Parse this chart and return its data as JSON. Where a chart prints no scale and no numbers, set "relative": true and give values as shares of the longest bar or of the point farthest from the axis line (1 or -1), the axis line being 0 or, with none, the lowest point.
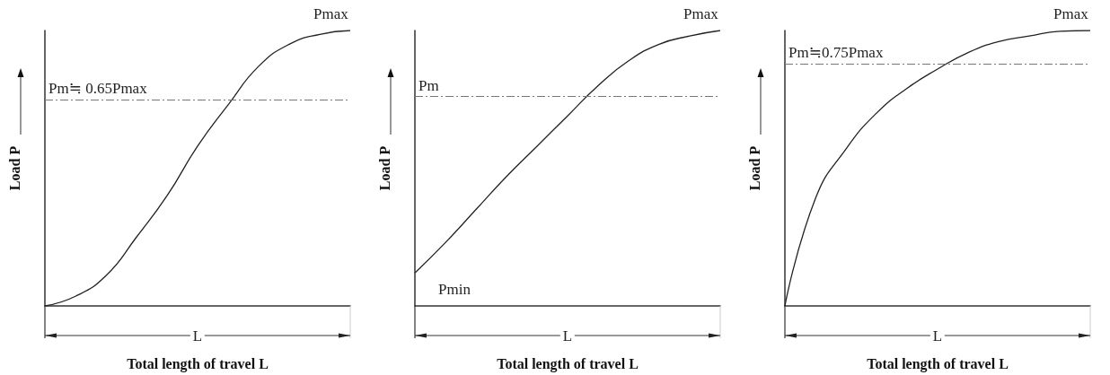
{
  "chart_data": [
    {
      "type": "line",
      "relative": true,
      "xlabel": "Total length of travel L",
      "ylabel": "Load P",
      "line_style": "solid",
      "categories": [
        null,
        null,
        null,
        null,
        null,
        null,
        null,
        null,
        null,
        null,
        null
      ],
      "values": [
        0,
        0.035,
        0.11,
        0.25,
        0.4,
        0.58,
        0.73,
        0.87,
        0.95,
        0.986,
        1
      ],
      "color": "#222222",
      "ref_lines": [
        {
          "axis": "y",
          "value": 0.75,
          "label": "Pm≒ 0.65Pmax",
          "line_style": "dashed",
          "color": "#777777"
        }
      ],
      "annotations": [
        {
          "text": "Pmax",
          "y": 1
        },
        "L"
      ]
    },
    {
      "type": "line",
      "relative": true,
      "xlabel": "Total length of travel L",
      "ylabel": "Load P",
      "line_style": "solid",
      "categories": [
        null,
        null,
        null,
        null,
        null,
        null,
        null,
        null,
        null,
        null,
        null
      ],
      "values": [
        0.12,
        0.23,
        0.35,
        0.47,
        0.58,
        0.69,
        0.8,
        0.89,
        0.95,
        0.98,
        1
      ],
      "color": "#222222",
      "ref_lines": [
        {
          "axis": "y",
          "value": 0.76,
          "label": "Pm",
          "line_style": "dashed",
          "color": "#777777"
        }
      ],
      "annotations": [
        {
          "text": "Pmax",
          "y": 1
        },
        "Pmin",
        "L"
      ]
    },
    {
      "type": "line",
      "relative": true,
      "xlabel": "Total length of travel L",
      "ylabel": "Load P",
      "line_style": "solid",
      "categories": [
        null,
        null,
        null,
        null,
        null,
        null,
        null,
        null,
        null,
        null,
        null
      ],
      "values": [
        0,
        0.39,
        0.57,
        0.7,
        0.79,
        0.86,
        0.92,
        0.96,
        0.98,
        0.997,
        1
      ],
      "color": "#222222",
      "ref_lines": [
        {
          "axis": "y",
          "value": 0.88,
          "label": "Pm≒0.75Pmax",
          "line_style": "dashed",
          "color": "#777777"
        }
      ],
      "annotations": [
        {
          "text": "Pmax",
          "y": 1
        },
        "L"
      ]
    }
  ]
}
